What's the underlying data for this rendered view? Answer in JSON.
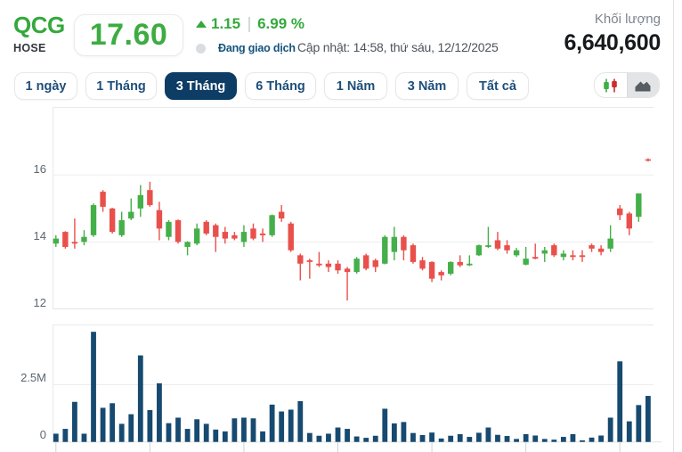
{
  "header": {
    "symbol": "QCG",
    "exchange": "HOSE",
    "price": "17.60",
    "change": "1.15",
    "change_percent": "6.99 %",
    "status": "Đang giao dịch",
    "updated": "Cập nhật: 14:58, thứ sáu, 12/12/2025",
    "volume_label": "Khối lượng",
    "volume_value": "6,640,600",
    "up_color": "#35a83d"
  },
  "range_buttons": [
    {
      "label": "1 ngày",
      "active": false
    },
    {
      "label": "1 Tháng",
      "active": false
    },
    {
      "label": "3 Tháng",
      "active": true
    },
    {
      "label": "6 Tháng",
      "active": false
    },
    {
      "label": "1 Năm",
      "active": false
    },
    {
      "label": "3 Năm",
      "active": false
    },
    {
      "label": "Tất cả",
      "active": false
    }
  ],
  "chart_type_toggle": {
    "options": [
      "candlestick",
      "area"
    ],
    "selected": "candlestick"
  },
  "chart_data": {
    "type": "candlestick",
    "symbol": "QCG",
    "period": "3 Tháng",
    "price_axis": {
      "ticks": [
        {
          "value": 16,
          "label": "16"
        },
        {
          "value": 14,
          "label": "14"
        },
        {
          "value": 12,
          "label": "12"
        }
      ],
      "range": [
        12,
        18.02
      ]
    },
    "volume_axis": {
      "ticks": [
        {
          "value": 2500000,
          "label": "2.5M"
        },
        {
          "value": 0,
          "label": "0"
        }
      ],
      "range": [
        0,
        5280000
      ]
    },
    "up_color": "#45af4a",
    "down_color": "#e9504c",
    "volume_color": "#174a70",
    "grid": true,
    "columns": [
      "open",
      "high",
      "low",
      "close",
      "volume"
    ],
    "candles": [
      [
        13.95,
        14.2,
        13.85,
        14.1,
        360000
      ],
      [
        14.3,
        14.32,
        13.8,
        13.85,
        570000
      ],
      [
        14.0,
        14.7,
        13.8,
        13.95,
        1750000
      ],
      [
        14.0,
        14.35,
        13.9,
        14.15,
        360000
      ],
      [
        14.2,
        15.15,
        14.15,
        15.1,
        4810000
      ],
      [
        15.5,
        15.55,
        14.9,
        15.05,
        1490000
      ],
      [
        15.0,
        15.02,
        14.25,
        14.3,
        1690000
      ],
      [
        14.2,
        14.9,
        14.15,
        14.65,
        790000
      ],
      [
        14.7,
        15.3,
        14.65,
        14.9,
        1210000
      ],
      [
        15.0,
        15.7,
        14.75,
        15.4,
        3780000
      ],
      [
        15.55,
        15.8,
        15.05,
        15.1,
        1390000
      ],
      [
        14.95,
        15.2,
        14.05,
        14.4,
        2560000
      ],
      [
        14.15,
        14.65,
        14.05,
        14.6,
        820000
      ],
      [
        14.65,
        14.67,
        13.95,
        14.0,
        1060000
      ],
      [
        13.85,
        14.02,
        13.6,
        14.0,
        570000
      ],
      [
        13.95,
        14.55,
        13.9,
        14.4,
        990000
      ],
      [
        14.6,
        14.65,
        14.2,
        14.25,
        790000
      ],
      [
        14.5,
        14.55,
        13.7,
        14.15,
        540000
      ],
      [
        14.3,
        14.45,
        13.95,
        14.1,
        460000
      ],
      [
        14.2,
        14.3,
        14.05,
        14.1,
        1030000
      ],
      [
        14.0,
        14.5,
        13.85,
        14.3,
        1060000
      ],
      [
        14.4,
        14.55,
        14.05,
        14.1,
        1030000
      ],
      [
        14.25,
        14.4,
        14.0,
        14.2,
        460000
      ],
      [
        14.2,
        14.82,
        14.15,
        14.8,
        1630000
      ],
      [
        14.9,
        15.1,
        14.6,
        14.7,
        1330000
      ],
      [
        14.55,
        14.6,
        13.7,
        13.75,
        1410000
      ],
      [
        13.6,
        13.65,
        12.85,
        13.35,
        1780000
      ],
      [
        13.45,
        13.5,
        12.9,
        13.4,
        390000
      ],
      [
        13.35,
        13.7,
        13.25,
        13.3,
        270000
      ],
      [
        13.35,
        13.45,
        13.1,
        13.25,
        360000
      ],
      [
        13.35,
        13.45,
        13.05,
        13.15,
        630000
      ],
      [
        13.2,
        13.25,
        12.25,
        13.1,
        570000
      ],
      [
        13.1,
        13.55,
        13.05,
        13.5,
        240000
      ],
      [
        13.6,
        13.65,
        13.15,
        13.2,
        180000
      ],
      [
        13.45,
        13.5,
        13.1,
        13.25,
        270000
      ],
      [
        13.35,
        14.2,
        13.33,
        14.15,
        1450000
      ],
      [
        13.7,
        14.45,
        13.45,
        14.15,
        810000
      ],
      [
        14.15,
        14.2,
        13.45,
        13.75,
        870000
      ],
      [
        13.9,
        13.95,
        13.35,
        13.4,
        390000
      ],
      [
        13.45,
        13.55,
        13.15,
        13.2,
        300000
      ],
      [
        13.4,
        13.42,
        12.8,
        12.9,
        410000
      ],
      [
        13.1,
        13.15,
        12.85,
        13.0,
        150000
      ],
      [
        13.05,
        13.42,
        13.0,
        13.4,
        270000
      ],
      [
        13.4,
        13.6,
        13.25,
        13.3,
        340000
      ],
      [
        13.3,
        13.6,
        13.28,
        13.35,
        220000
      ],
      [
        13.6,
        13.92,
        13.58,
        13.9,
        400000
      ],
      [
        13.85,
        14.45,
        13.82,
        13.9,
        630000
      ],
      [
        14.05,
        14.3,
        13.75,
        13.8,
        310000
      ],
      [
        13.9,
        14.05,
        13.65,
        13.75,
        260000
      ],
      [
        13.6,
        13.82,
        13.55,
        13.75,
        130000
      ],
      [
        13.32,
        13.85,
        13.3,
        13.5,
        340000
      ],
      [
        13.55,
        13.95,
        13.48,
        13.5,
        280000
      ],
      [
        13.65,
        13.85,
        13.4,
        13.75,
        130000
      ],
      [
        13.9,
        13.95,
        13.55,
        13.6,
        100000
      ],
      [
        13.55,
        13.75,
        13.45,
        13.65,
        220000
      ],
      [
        13.6,
        13.75,
        13.45,
        13.55,
        340000
      ],
      [
        13.6,
        13.75,
        13.4,
        13.55,
        70000
      ],
      [
        13.9,
        13.95,
        13.7,
        13.8,
        190000
      ],
      [
        13.8,
        13.9,
        13.6,
        13.7,
        280000
      ],
      [
        13.8,
        14.5,
        13.7,
        14.1,
        1060000
      ],
      [
        15.0,
        15.1,
        14.65,
        14.8,
        3520000
      ],
      [
        14.85,
        14.9,
        14.2,
        14.4,
        900000
      ],
      [
        14.75,
        15.45,
        14.6,
        15.45,
        1610000
      ],
      [
        16.47,
        16.5,
        16.4,
        16.43,
        2010000
      ]
    ]
  }
}
